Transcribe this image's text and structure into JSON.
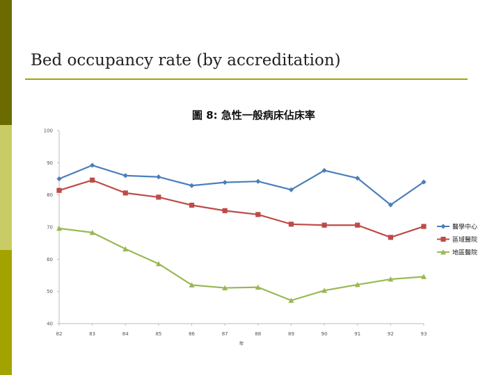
{
  "slide": {
    "title": "Bed occupancy rate (by accreditation)",
    "colors": {
      "sidebar_dark": "#6b6b00",
      "sidebar_light": "#c9cc66",
      "sidebar_mid": "#a3a300",
      "rule": "#a5a300"
    }
  },
  "chart_data": {
    "type": "line",
    "title": "圖 8: 急性一般病床佔床率",
    "xlabel": "年",
    "ylabel": "",
    "ylim": [
      40,
      100
    ],
    "yticks": [
      40,
      50,
      60,
      70,
      80,
      90,
      100
    ],
    "x": [
      "82",
      "83",
      "84",
      "85",
      "86",
      "87",
      "88",
      "89",
      "90",
      "91",
      "92",
      "93"
    ],
    "grid": false,
    "legend_position": "right",
    "series": [
      {
        "name": "醫學中心",
        "color": "#4a7ebb",
        "marker": "diamond",
        "values": [
          85.0,
          89.2,
          86.0,
          85.6,
          82.9,
          83.9,
          84.2,
          81.6,
          87.6,
          85.2,
          76.9,
          84.0
        ]
      },
      {
        "name": "區域醫院",
        "color": "#be4b48",
        "marker": "square",
        "values": [
          81.4,
          84.6,
          80.6,
          79.3,
          76.8,
          75.1,
          73.9,
          70.9,
          70.6,
          70.6,
          66.8,
          70.2
        ]
      },
      {
        "name": "地區醫院",
        "color": "#98b954",
        "marker": "triangle",
        "values": [
          69.6,
          68.3,
          63.2,
          58.6,
          52.0,
          51.1,
          51.3,
          47.2,
          50.3,
          52.1,
          53.8,
          54.6
        ]
      }
    ]
  }
}
